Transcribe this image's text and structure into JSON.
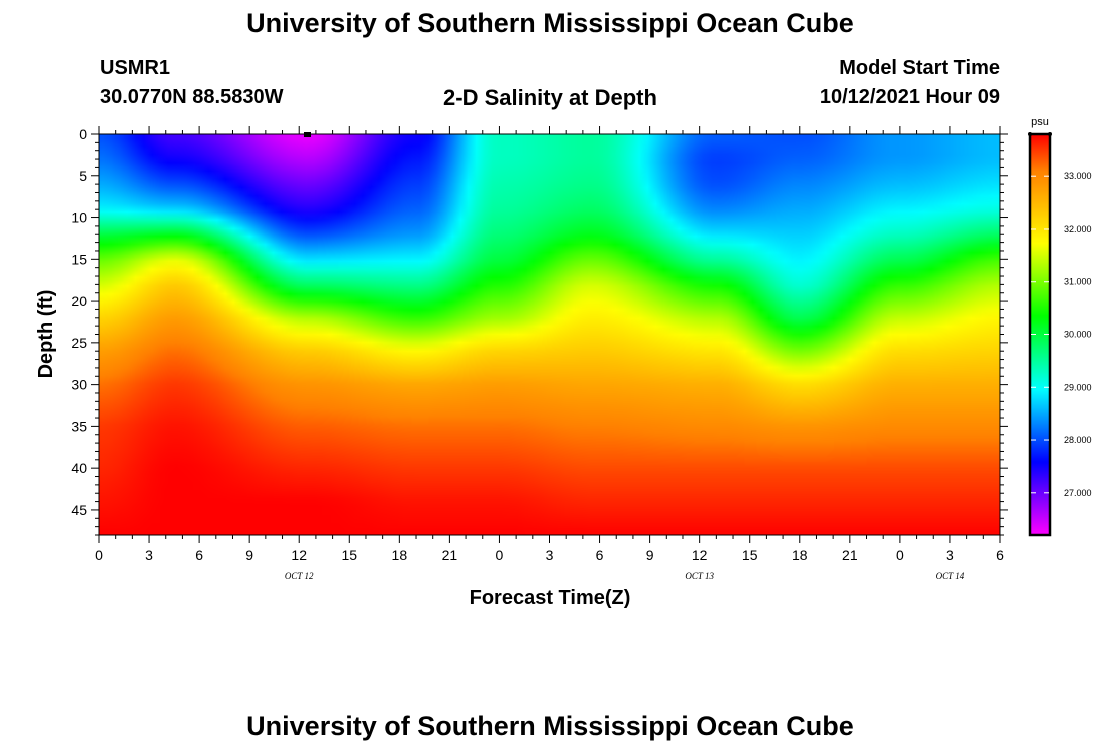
{
  "page": {
    "title_top": "University of Southern Mississippi Ocean Cube",
    "title_bottom": "University of Southern Mississippi Ocean Cube",
    "station_id": "USMR1",
    "station_coords": "30.0770N  88.5830W",
    "plot_title": "2-D Salinity at Depth",
    "model_start_label": "Model Start Time",
    "model_start_value": "10/12/2021 Hour 09"
  },
  "chart_data": {
    "type": "heatmap",
    "title": "2-D Salinity at Depth",
    "xlabel": "Forecast Time(Z)",
    "ylabel": "Depth (ft)",
    "x_range_hours": [
      0,
      54
    ],
    "x_ticks": [
      {
        "h": 0,
        "label": "0"
      },
      {
        "h": 3,
        "label": "3"
      },
      {
        "h": 6,
        "label": "6"
      },
      {
        "h": 9,
        "label": "9"
      },
      {
        "h": 12,
        "label": "12"
      },
      {
        "h": 15,
        "label": "15"
      },
      {
        "h": 18,
        "label": "18"
      },
      {
        "h": 21,
        "label": "21"
      },
      {
        "h": 24,
        "label": "0"
      },
      {
        "h": 27,
        "label": "3"
      },
      {
        "h": 30,
        "label": "6"
      },
      {
        "h": 33,
        "label": "9"
      },
      {
        "h": 36,
        "label": "12"
      },
      {
        "h": 39,
        "label": "15"
      },
      {
        "h": 42,
        "label": "18"
      },
      {
        "h": 45,
        "label": "21"
      },
      {
        "h": 48,
        "label": "0"
      },
      {
        "h": 51,
        "label": "3"
      },
      {
        "h": 54,
        "label": "6"
      }
    ],
    "date_labels": [
      {
        "h": 12,
        "label": "OCT 12"
      },
      {
        "h": 36,
        "label": "OCT 13"
      },
      {
        "h": 51,
        "label": "OCT 14"
      }
    ],
    "y_range_ft": [
      0,
      48
    ],
    "y_ticks": [
      0,
      5,
      10,
      15,
      20,
      25,
      30,
      35,
      40,
      45
    ],
    "colorbar": {
      "unit": "psu",
      "min": 26.2,
      "max": 33.8,
      "tick_values": [
        27,
        28,
        29,
        30,
        31,
        32,
        33
      ],
      "tick_labels": [
        "27.000",
        "28.000",
        "29.000",
        "30.000",
        "31.000",
        "32.000",
        "33.000"
      ]
    },
    "color_stops": [
      "#ff00ff",
      "#8000ff",
      "#0000ff",
      "#0080ff",
      "#00ffff",
      "#00ff80",
      "#00ff00",
      "#80ff00",
      "#ffff00",
      "#ffc000",
      "#ff8000",
      "#ff0000"
    ],
    "profile_times_h": [
      0,
      4.5,
      12.5,
      19,
      24,
      29.5,
      37,
      42,
      48,
      54
    ],
    "profile_depths_ft": [
      0,
      3,
      6,
      9,
      12,
      15,
      18,
      22,
      26,
      30,
      35,
      40,
      44,
      48
    ],
    "salinity_profiles": [
      [
        28.0,
        28.2,
        28.5,
        28.9,
        30.0,
        30.9,
        31.5,
        32.2,
        32.8,
        33.2,
        33.5,
        33.6,
        33.7,
        33.8
      ],
      [
        27.2,
        27.5,
        28.0,
        28.7,
        30.2,
        31.6,
        32.3,
        32.8,
        33.2,
        33.5,
        33.7,
        33.8,
        33.8,
        33.8
      ],
      [
        26.3,
        26.6,
        27.0,
        27.4,
        28.0,
        28.8,
        29.8,
        31.3,
        32.3,
        32.9,
        33.3,
        33.6,
        33.8,
        33.8
      ],
      [
        27.5,
        27.7,
        27.9,
        28.1,
        28.4,
        28.9,
        29.6,
        30.6,
        31.8,
        32.7,
        33.2,
        33.5,
        33.7,
        33.8
      ],
      [
        29.3,
        29.3,
        29.4,
        29.5,
        29.7,
        30.0,
        30.5,
        31.2,
        32.2,
        32.8,
        33.2,
        33.5,
        33.7,
        33.8
      ],
      [
        29.5,
        29.5,
        29.6,
        29.8,
        30.2,
        30.9,
        31.5,
        31.9,
        32.3,
        32.7,
        33.1,
        33.4,
        33.6,
        33.8
      ],
      [
        28.1,
        27.9,
        28.0,
        28.3,
        28.8,
        29.5,
        30.4,
        31.3,
        32.0,
        32.6,
        33.0,
        33.4,
        33.6,
        33.8
      ],
      [
        28.0,
        28.1,
        28.3,
        28.5,
        28.7,
        28.9,
        29.2,
        29.9,
        31.0,
        32.1,
        32.9,
        33.4,
        33.6,
        33.8
      ],
      [
        28.4,
        28.4,
        28.6,
        28.9,
        29.3,
        29.9,
        30.6,
        31.4,
        32.1,
        32.6,
        33.0,
        33.4,
        33.6,
        33.8
      ],
      [
        28.6,
        28.6,
        28.8,
        29.1,
        29.8,
        30.7,
        31.3,
        31.8,
        32.2,
        32.6,
        33.0,
        33.4,
        33.6,
        33.8
      ]
    ]
  }
}
